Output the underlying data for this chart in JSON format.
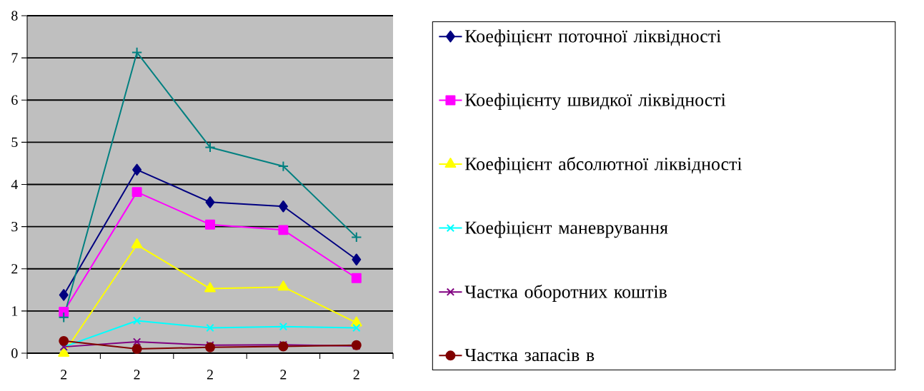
{
  "chart_data": {
    "type": "line",
    "categories": [
      "2",
      "2",
      "2",
      "2",
      "2"
    ],
    "series": [
      {
        "name": "Коефіцієнт поточної ліквідності",
        "color": "#000080",
        "marker": "diamond",
        "values": [
          1.38,
          4.35,
          3.58,
          3.48,
          2.22
        ]
      },
      {
        "name": "Коефіцієнту швидкої ліквідності",
        "color": "#ff00ff",
        "marker": "square",
        "values": [
          0.98,
          3.82,
          3.05,
          2.92,
          1.78
        ]
      },
      {
        "name": "Коефіцієнт абсолютної ліквідності",
        "color": "#ffff00",
        "marker": "triangle",
        "values": [
          0,
          2.57,
          1.53,
          1.57,
          0.72
        ]
      },
      {
        "name": "Коефіцієнт маневрування",
        "color": "#00ffff",
        "marker": "cross",
        "values": [
          0.15,
          0.77,
          0.6,
          0.63,
          0.6
        ]
      },
      {
        "name": "Частка оборотних коштів",
        "color": "#800080",
        "marker": "cross",
        "values": [
          0.15,
          0.27,
          0.19,
          0.2,
          0.17
        ]
      },
      {
        "name": "Частка запасів в",
        "color": "#800000",
        "marker": "circle",
        "values": [
          0.29,
          0.1,
          0.14,
          0.16,
          0.19
        ]
      },
      {
        "color": "#008080",
        "marker": "plus",
        "values": [
          0.85,
          7.13,
          4.88,
          4.43,
          2.75
        ]
      }
    ],
    "ylim": [
      0,
      8
    ],
    "yticks": [
      0,
      1,
      2,
      3,
      4,
      5,
      6,
      7,
      8
    ],
    "grid": "y",
    "legend": "right"
  }
}
